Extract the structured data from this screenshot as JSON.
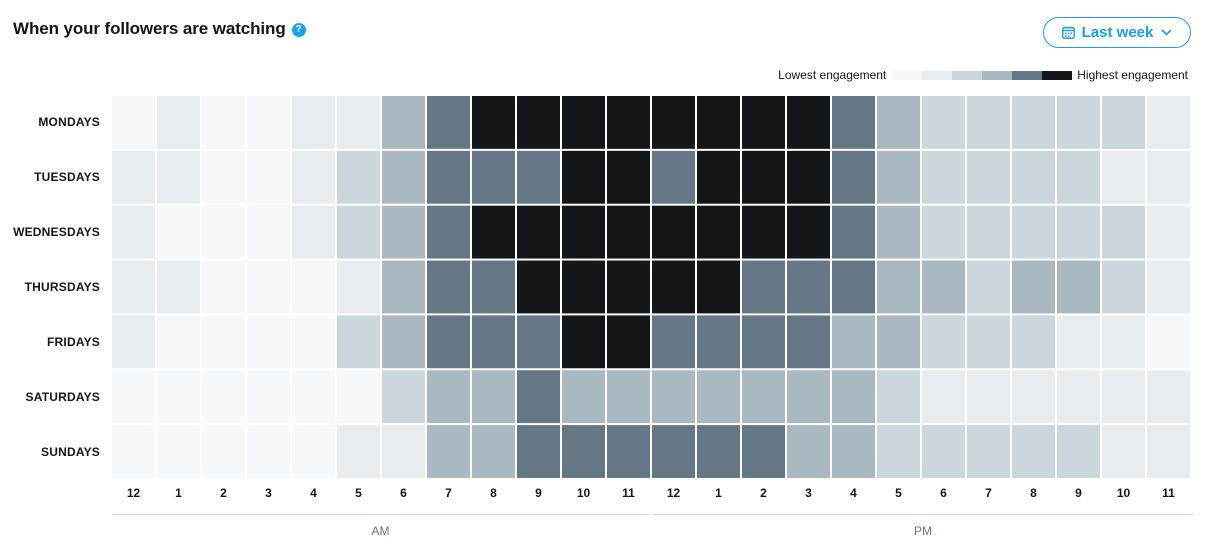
{
  "header": {
    "title": "When your followers are watching",
    "help_icon": "question-circle-icon",
    "range_button": {
      "label": "Last week",
      "icon": "calendar-icon",
      "caret_icon": "chevron-down-icon"
    }
  },
  "legend": {
    "low_label": "Lowest engagement",
    "high_label": "Highest engagement",
    "colors": [
      "#f5f8fa",
      "#e6ecf0",
      "#ccd6dd",
      "#aab8c2",
      "#657786",
      "#14171a"
    ]
  },
  "chart_data": {
    "type": "heatmap",
    "rows": [
      "MONDAYS",
      "TUESDAYS",
      "WEDNESDAYS",
      "THURSDAYS",
      "FRIDAYS",
      "SATURDAYS",
      "SUNDAYS"
    ],
    "columns": [
      "12",
      "1",
      "2",
      "3",
      "4",
      "5",
      "6",
      "7",
      "8",
      "9",
      "10",
      "11",
      "12",
      "1",
      "2",
      "3",
      "4",
      "5",
      "6",
      "7",
      "8",
      "9",
      "10",
      "11"
    ],
    "periods": [
      "AM",
      "PM"
    ],
    "scale_levels": 6,
    "values": [
      [
        0,
        1,
        0,
        0,
        1,
        1,
        3,
        4,
        5,
        5,
        5,
        5,
        5,
        5,
        5,
        5,
        4,
        3,
        2,
        2,
        2,
        2,
        2,
        1
      ],
      [
        1,
        1,
        0,
        0,
        1,
        2,
        3,
        4,
        4,
        4,
        5,
        5,
        4,
        5,
        5,
        5,
        4,
        3,
        2,
        2,
        2,
        2,
        1,
        1
      ],
      [
        1,
        0,
        0,
        0,
        1,
        2,
        3,
        4,
        5,
        5,
        5,
        5,
        5,
        5,
        5,
        5,
        4,
        3,
        2,
        2,
        2,
        2,
        2,
        1
      ],
      [
        1,
        1,
        0,
        0,
        0,
        1,
        3,
        4,
        4,
        5,
        5,
        5,
        5,
        5,
        4,
        4,
        4,
        3,
        3,
        2,
        3,
        3,
        2,
        1
      ],
      [
        1,
        0,
        0,
        0,
        0,
        2,
        3,
        4,
        4,
        4,
        5,
        5,
        4,
        4,
        4,
        4,
        3,
        3,
        2,
        2,
        2,
        1,
        1,
        0
      ],
      [
        0,
        0,
        0,
        0,
        0,
        0,
        2,
        3,
        3,
        4,
        3,
        3,
        3,
        3,
        3,
        3,
        3,
        2,
        1,
        1,
        1,
        1,
        1,
        1
      ],
      [
        0,
        0,
        0,
        0,
        0,
        1,
        1,
        3,
        3,
        4,
        4,
        4,
        4,
        4,
        4,
        3,
        3,
        2,
        2,
        2,
        2,
        2,
        1,
        1
      ]
    ]
  }
}
